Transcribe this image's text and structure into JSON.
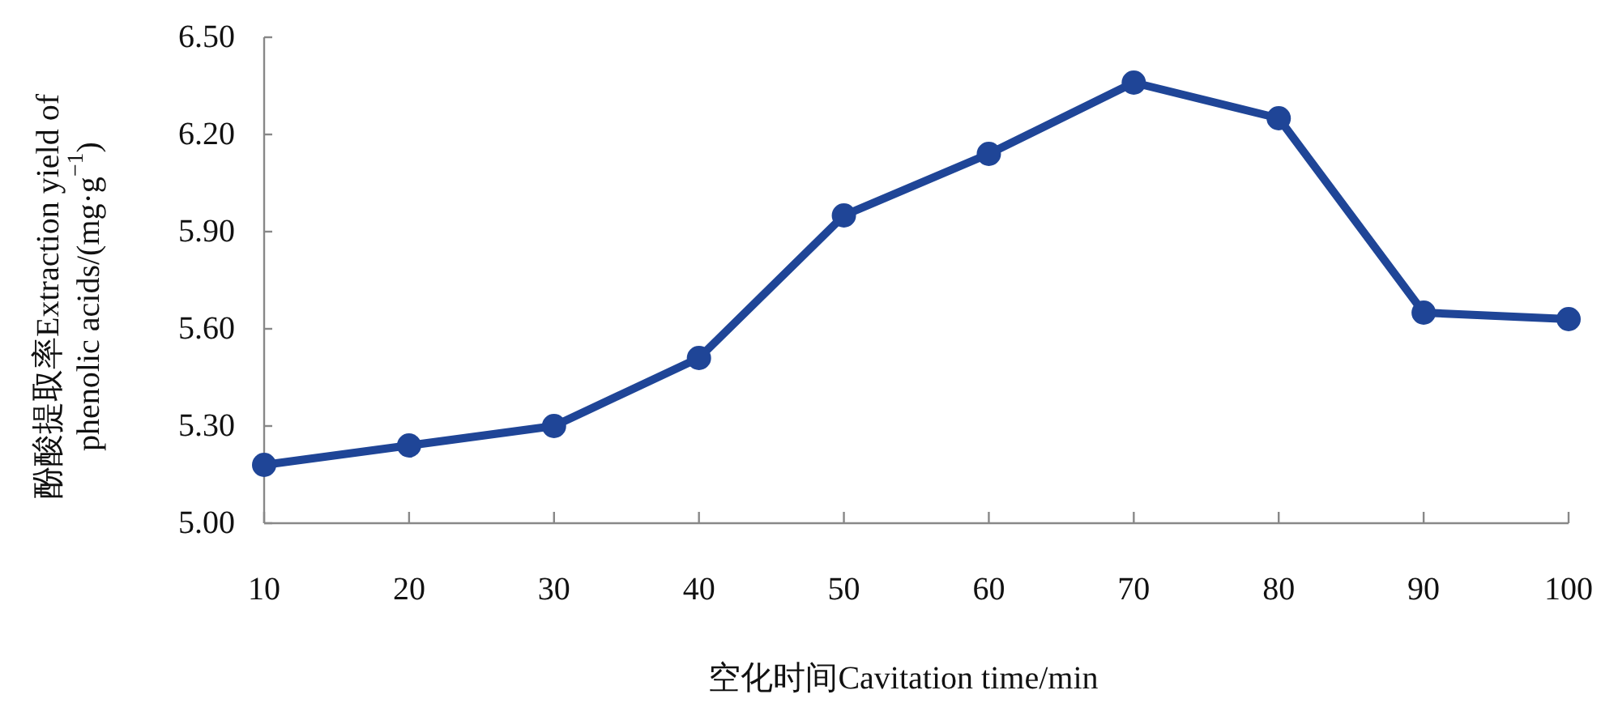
{
  "chart_data": {
    "type": "line",
    "xlabel": "空化时间Cavitation time/min",
    "ylabel": "酚酸提取率Extraction yield of phenolic acids/(mg·g$^{−1}$)",
    "x": [
      10,
      20,
      30,
      40,
      50,
      60,
      70,
      80,
      90,
      100
    ],
    "series": [
      {
        "color": "#1f4597",
        "values": [
          5.18,
          5.24,
          5.3,
          5.51,
          5.95,
          6.14,
          6.36,
          6.25,
          5.65,
          5.63
        ]
      }
    ],
    "xlim": [
      10,
      100
    ],
    "xticks": [
      10,
      20,
      30,
      40,
      50,
      60,
      70,
      80,
      90,
      100
    ],
    "ylim": [
      5.0,
      6.5
    ],
    "yticks": [
      {
        "value": 5.0,
        "label": "5.00"
      },
      {
        "value": 5.3,
        "label": "5.30"
      },
      {
        "value": 5.6,
        "label": "5.60"
      },
      {
        "value": 5.9,
        "label": "5.90"
      },
      {
        "value": 6.2,
        "label": "6.20"
      },
      {
        "value": 6.5,
        "label": "6.50"
      }
    ],
    "grid": false,
    "marker": "circle",
    "line_style": "solid"
  }
}
